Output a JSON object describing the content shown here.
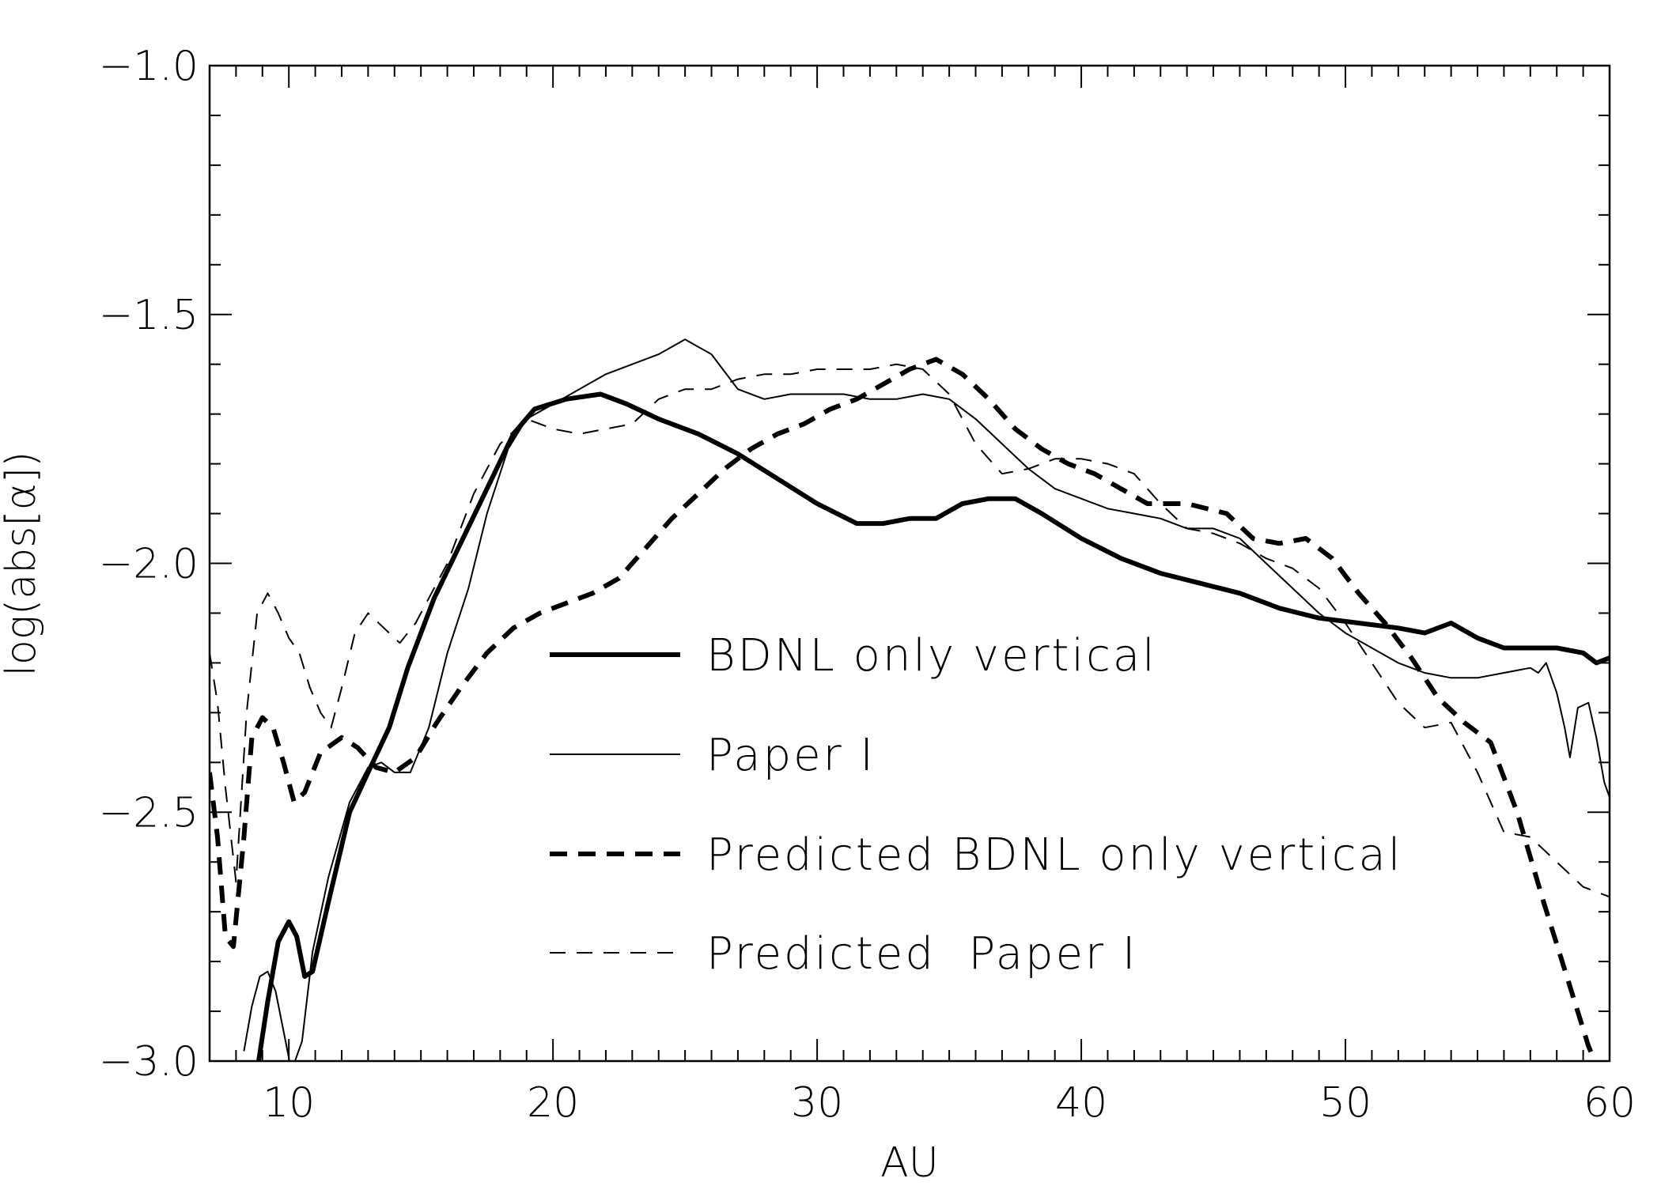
{
  "chart_data": {
    "type": "line",
    "xlabel": "AU",
    "ylabel": "log(abs[α])",
    "xlim": [
      7,
      60
    ],
    "ylim": [
      -3.0,
      -1.0
    ],
    "x_ticks": [
      10,
      20,
      30,
      40,
      50,
      60
    ],
    "x_tick_labels": [
      "10",
      "20",
      "30",
      "40",
      "50",
      "60"
    ],
    "y_ticks": [
      -3.0,
      -2.5,
      -2.0,
      -1.5,
      -1.0
    ],
    "y_tick_labels": [
      "−3.0",
      "−2.5",
      "−2.0",
      "−1.5",
      "−1.0"
    ],
    "legend_position": "center",
    "grid": false,
    "series": [
      {
        "name": "BDNL only vertical",
        "style": "thick-solid",
        "points": [
          [
            8.8,
            -3.02
          ],
          [
            9.2,
            -2.88
          ],
          [
            9.6,
            -2.76
          ],
          [
            10.0,
            -2.72
          ],
          [
            10.3,
            -2.75
          ],
          [
            10.6,
            -2.83
          ],
          [
            10.9,
            -2.82
          ],
          [
            11.5,
            -2.68
          ],
          [
            12.3,
            -2.5
          ],
          [
            13.0,
            -2.42
          ],
          [
            13.8,
            -2.33
          ],
          [
            14.5,
            -2.21
          ],
          [
            15.5,
            -2.07
          ],
          [
            16.5,
            -1.96
          ],
          [
            17.5,
            -1.85
          ],
          [
            18.5,
            -1.74
          ],
          [
            19.3,
            -1.69
          ],
          [
            20.5,
            -1.67
          ],
          [
            21.8,
            -1.66
          ],
          [
            22.8,
            -1.68
          ],
          [
            24.0,
            -1.71
          ],
          [
            25.5,
            -1.74
          ],
          [
            27.0,
            -1.78
          ],
          [
            28.5,
            -1.83
          ],
          [
            30.0,
            -1.88
          ],
          [
            31.5,
            -1.92
          ],
          [
            32.5,
            -1.92
          ],
          [
            33.5,
            -1.91
          ],
          [
            34.5,
            -1.91
          ],
          [
            35.5,
            -1.88
          ],
          [
            36.5,
            -1.87
          ],
          [
            37.5,
            -1.87
          ],
          [
            38.5,
            -1.9
          ],
          [
            40.0,
            -1.95
          ],
          [
            41.5,
            -1.99
          ],
          [
            43.0,
            -2.02
          ],
          [
            44.5,
            -2.04
          ],
          [
            46.0,
            -2.06
          ],
          [
            47.5,
            -2.09
          ],
          [
            49.0,
            -2.11
          ],
          [
            50.5,
            -2.12
          ],
          [
            52.0,
            -2.13
          ],
          [
            53.0,
            -2.14
          ],
          [
            54.0,
            -2.12
          ],
          [
            55.0,
            -2.15
          ],
          [
            56.0,
            -2.17
          ],
          [
            57.0,
            -2.17
          ],
          [
            58.0,
            -2.17
          ],
          [
            59.0,
            -2.18
          ],
          [
            59.5,
            -2.2
          ],
          [
            60.0,
            -2.19
          ]
        ]
      },
      {
        "name": "Paper I",
        "style": "thin-solid",
        "points": [
          [
            8.3,
            -2.98
          ],
          [
            8.6,
            -2.89
          ],
          [
            8.9,
            -2.83
          ],
          [
            9.2,
            -2.82
          ],
          [
            9.5,
            -2.86
          ],
          [
            9.8,
            -2.94
          ],
          [
            10.1,
            -3.02
          ],
          [
            10.5,
            -2.96
          ],
          [
            10.9,
            -2.78
          ],
          [
            11.5,
            -2.63
          ],
          [
            12.3,
            -2.48
          ],
          [
            13.0,
            -2.41
          ],
          [
            13.5,
            -2.4
          ],
          [
            14.0,
            -2.42
          ],
          [
            14.6,
            -2.42
          ],
          [
            15.3,
            -2.33
          ],
          [
            16.0,
            -2.18
          ],
          [
            16.8,
            -2.05
          ],
          [
            17.5,
            -1.9
          ],
          [
            18.3,
            -1.77
          ],
          [
            19.0,
            -1.71
          ],
          [
            20.0,
            -1.68
          ],
          [
            21.0,
            -1.65
          ],
          [
            22.0,
            -1.62
          ],
          [
            23.0,
            -1.6
          ],
          [
            24.0,
            -1.58
          ],
          [
            25.0,
            -1.55
          ],
          [
            26.0,
            -1.58
          ],
          [
            27.0,
            -1.65
          ],
          [
            28.0,
            -1.67
          ],
          [
            29.0,
            -1.66
          ],
          [
            30.0,
            -1.66
          ],
          [
            31.0,
            -1.66
          ],
          [
            32.0,
            -1.67
          ],
          [
            33.0,
            -1.67
          ],
          [
            34.0,
            -1.66
          ],
          [
            35.0,
            -1.67
          ],
          [
            36.0,
            -1.71
          ],
          [
            37.0,
            -1.76
          ],
          [
            38.0,
            -1.81
          ],
          [
            39.0,
            -1.85
          ],
          [
            40.0,
            -1.87
          ],
          [
            41.0,
            -1.89
          ],
          [
            42.0,
            -1.9
          ],
          [
            43.0,
            -1.91
          ],
          [
            44.0,
            -1.93
          ],
          [
            45.0,
            -1.93
          ],
          [
            46.0,
            -1.95
          ],
          [
            47.0,
            -2.0
          ],
          [
            48.0,
            -2.05
          ],
          [
            49.0,
            -2.1
          ],
          [
            50.0,
            -2.14
          ],
          [
            51.0,
            -2.17
          ],
          [
            52.0,
            -2.2
          ],
          [
            53.0,
            -2.22
          ],
          [
            54.0,
            -2.23
          ],
          [
            55.0,
            -2.23
          ],
          [
            56.0,
            -2.22
          ],
          [
            57.0,
            -2.21
          ],
          [
            57.3,
            -2.22
          ],
          [
            57.6,
            -2.2
          ],
          [
            58.0,
            -2.26
          ],
          [
            58.3,
            -2.33
          ],
          [
            58.5,
            -2.39
          ],
          [
            58.8,
            -2.29
          ],
          [
            59.2,
            -2.28
          ],
          [
            59.5,
            -2.35
          ],
          [
            59.8,
            -2.44
          ],
          [
            60.0,
            -2.47
          ]
        ]
      },
      {
        "name": "Predicted BDNL only vertical",
        "style": "thick-dashed",
        "points": [
          [
            7.0,
            -2.42
          ],
          [
            7.3,
            -2.55
          ],
          [
            7.6,
            -2.75
          ],
          [
            7.9,
            -2.77
          ],
          [
            8.3,
            -2.55
          ],
          [
            8.6,
            -2.35
          ],
          [
            9.0,
            -2.31
          ],
          [
            9.4,
            -2.33
          ],
          [
            9.8,
            -2.4
          ],
          [
            10.2,
            -2.48
          ],
          [
            10.6,
            -2.46
          ],
          [
            11.2,
            -2.38
          ],
          [
            12.0,
            -2.35
          ],
          [
            12.6,
            -2.37
          ],
          [
            13.3,
            -2.41
          ],
          [
            14.0,
            -2.42
          ],
          [
            14.8,
            -2.39
          ],
          [
            15.6,
            -2.32
          ],
          [
            16.5,
            -2.25
          ],
          [
            17.5,
            -2.18
          ],
          [
            18.5,
            -2.13
          ],
          [
            19.5,
            -2.1
          ],
          [
            20.5,
            -2.08
          ],
          [
            21.5,
            -2.06
          ],
          [
            22.5,
            -2.03
          ],
          [
            23.5,
            -1.97
          ],
          [
            24.5,
            -1.91
          ],
          [
            25.5,
            -1.86
          ],
          [
            26.5,
            -1.81
          ],
          [
            27.5,
            -1.77
          ],
          [
            28.5,
            -1.74
          ],
          [
            29.5,
            -1.72
          ],
          [
            30.5,
            -1.69
          ],
          [
            31.5,
            -1.67
          ],
          [
            32.5,
            -1.64
          ],
          [
            33.5,
            -1.61
          ],
          [
            34.5,
            -1.59
          ],
          [
            35.5,
            -1.62
          ],
          [
            36.5,
            -1.67
          ],
          [
            37.5,
            -1.73
          ],
          [
            38.5,
            -1.77
          ],
          [
            39.5,
            -1.8
          ],
          [
            40.5,
            -1.82
          ],
          [
            41.5,
            -1.85
          ],
          [
            42.5,
            -1.88
          ],
          [
            44.0,
            -1.88
          ],
          [
            45.5,
            -1.9
          ],
          [
            46.5,
            -1.95
          ],
          [
            47.5,
            -1.96
          ],
          [
            48.5,
            -1.95
          ],
          [
            49.5,
            -1.99
          ],
          [
            50.5,
            -2.06
          ],
          [
            51.5,
            -2.12
          ],
          [
            52.5,
            -2.19
          ],
          [
            53.5,
            -2.27
          ],
          [
            54.5,
            -2.32
          ],
          [
            55.5,
            -2.36
          ],
          [
            56.5,
            -2.5
          ],
          [
            57.5,
            -2.68
          ],
          [
            58.5,
            -2.85
          ],
          [
            59.2,
            -2.97
          ],
          [
            59.6,
            -3.02
          ],
          [
            60.0,
            -2.99
          ]
        ]
      },
      {
        "name": "Predicted  Paper I",
        "style": "thin-dashed",
        "points": [
          [
            7.0,
            -2.18
          ],
          [
            7.3,
            -2.28
          ],
          [
            7.6,
            -2.45
          ],
          [
            8.0,
            -2.64
          ],
          [
            8.4,
            -2.3
          ],
          [
            8.8,
            -2.1
          ],
          [
            9.2,
            -2.06
          ],
          [
            9.6,
            -2.1
          ],
          [
            10.0,
            -2.15
          ],
          [
            10.4,
            -2.18
          ],
          [
            10.8,
            -2.25
          ],
          [
            11.2,
            -2.3
          ],
          [
            11.6,
            -2.33
          ],
          [
            12.0,
            -2.25
          ],
          [
            12.5,
            -2.14
          ],
          [
            13.0,
            -2.1
          ],
          [
            13.6,
            -2.13
          ],
          [
            14.2,
            -2.16
          ],
          [
            14.8,
            -2.12
          ],
          [
            15.4,
            -2.06
          ],
          [
            16.0,
            -2.0
          ],
          [
            17.0,
            -1.86
          ],
          [
            18.0,
            -1.76
          ],
          [
            19.0,
            -1.71
          ],
          [
            20.0,
            -1.73
          ],
          [
            21.0,
            -1.74
          ],
          [
            22.0,
            -1.73
          ],
          [
            23.0,
            -1.72
          ],
          [
            24.0,
            -1.67
          ],
          [
            25.0,
            -1.65
          ],
          [
            26.0,
            -1.65
          ],
          [
            27.0,
            -1.63
          ],
          [
            28.0,
            -1.62
          ],
          [
            29.0,
            -1.62
          ],
          [
            30.0,
            -1.61
          ],
          [
            31.0,
            -1.61
          ],
          [
            32.0,
            -1.61
          ],
          [
            33.0,
            -1.6
          ],
          [
            34.0,
            -1.61
          ],
          [
            35.0,
            -1.66
          ],
          [
            36.0,
            -1.76
          ],
          [
            37.0,
            -1.82
          ],
          [
            38.0,
            -1.81
          ],
          [
            39.0,
            -1.79
          ],
          [
            40.0,
            -1.79
          ],
          [
            41.0,
            -1.8
          ],
          [
            42.0,
            -1.82
          ],
          [
            43.0,
            -1.88
          ],
          [
            44.0,
            -1.93
          ],
          [
            45.0,
            -1.94
          ],
          [
            46.0,
            -1.96
          ],
          [
            47.0,
            -1.99
          ],
          [
            48.0,
            -2.01
          ],
          [
            49.0,
            -2.05
          ],
          [
            50.0,
            -2.12
          ],
          [
            51.0,
            -2.2
          ],
          [
            52.0,
            -2.28
          ],
          [
            53.0,
            -2.33
          ],
          [
            54.0,
            -2.32
          ],
          [
            55.0,
            -2.42
          ],
          [
            56.0,
            -2.54
          ],
          [
            57.0,
            -2.55
          ],
          [
            58.0,
            -2.6
          ],
          [
            59.0,
            -2.65
          ],
          [
            60.0,
            -2.67
          ]
        ]
      }
    ]
  }
}
